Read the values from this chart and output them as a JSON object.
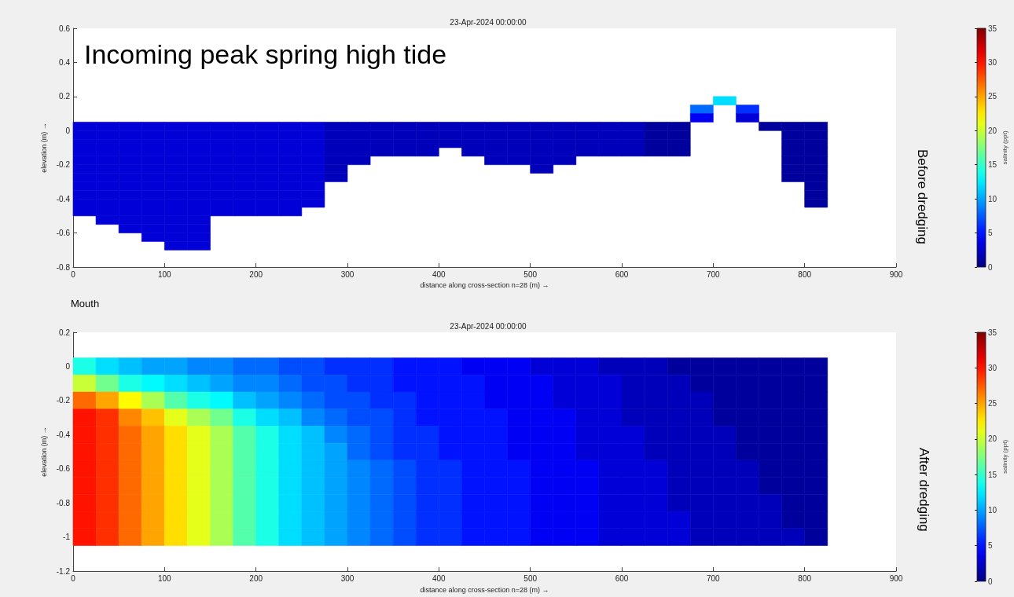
{
  "chart_data": [
    {
      "type": "heatmap",
      "title": "23-Apr-2024 00:00:00",
      "xlabel": "distance along cross-section n=28 (m) →",
      "ylabel": "elevation (m) →",
      "clabel": "salinity (ppt)",
      "annotations": [
        "Incoming peak spring high tide",
        "Before dredging"
      ],
      "x": [
        12.5,
        37.5,
        62.5,
        87.5,
        112.5,
        137.5,
        162.5,
        187.5,
        212.5,
        237.5,
        262.5,
        287.5,
        312.5,
        337.5,
        362.5,
        387.5,
        412.5,
        437.5,
        462.5,
        487.5,
        512.5,
        537.5,
        562.5,
        587.5,
        612.5,
        637.5,
        662.5,
        687.5,
        712.5,
        737.5,
        762.5,
        787.5,
        812.5
      ],
      "y": [
        0.175,
        0.125,
        0.075,
        0.025,
        -0.025,
        -0.075,
        -0.125,
        -0.175,
        -0.225,
        -0.275,
        -0.325,
        -0.375,
        -0.425,
        -0.475,
        -0.525,
        -0.575,
        -0.625,
        -0.675
      ],
      "cells": [
        [
          null,
          null,
          null,
          null,
          null,
          null,
          null,
          null,
          null,
          null,
          null,
          null,
          null,
          null,
          null,
          null,
          null,
          null,
          null,
          null,
          null,
          null,
          null,
          null,
          null,
          null,
          null,
          null,
          12,
          null,
          null,
          null,
          null
        ],
        [
          null,
          null,
          null,
          null,
          null,
          null,
          null,
          null,
          null,
          null,
          null,
          null,
          null,
          null,
          null,
          null,
          null,
          null,
          null,
          null,
          null,
          null,
          null,
          null,
          null,
          null,
          null,
          8,
          null,
          6,
          null,
          null,
          null
        ],
        [
          null,
          null,
          null,
          null,
          null,
          null,
          null,
          null,
          null,
          null,
          null,
          null,
          null,
          null,
          null,
          null,
          null,
          null,
          null,
          null,
          null,
          null,
          null,
          null,
          null,
          null,
          null,
          4,
          null,
          3,
          null,
          null,
          null
        ],
        [
          3,
          3,
          3,
          3,
          3,
          3,
          3,
          3,
          3,
          3,
          3,
          2,
          2,
          2,
          2,
          2,
          2,
          2,
          2,
          2,
          2,
          2,
          2,
          2,
          2,
          1,
          1,
          null,
          null,
          null,
          1,
          1,
          1
        ],
        [
          3,
          3,
          3,
          3,
          3,
          3,
          3,
          3,
          3,
          3,
          3,
          2,
          2,
          2,
          2,
          2,
          2,
          2,
          2,
          2,
          2,
          2,
          2,
          2,
          2,
          1,
          1,
          null,
          null,
          null,
          null,
          1,
          1
        ],
        [
          3,
          3,
          3,
          3,
          3,
          3,
          3,
          3,
          3,
          3,
          3,
          2,
          2,
          2,
          2,
          2,
          2,
          2,
          2,
          2,
          2,
          2,
          2,
          2,
          2,
          1,
          1,
          null,
          null,
          null,
          null,
          1,
          1
        ],
        [
          3,
          3,
          3,
          3,
          3,
          3,
          3,
          3,
          3,
          3,
          3,
          2,
          2,
          2,
          2,
          2,
          null,
          2,
          2,
          2,
          2,
          2,
          2,
          2,
          2,
          1,
          1,
          null,
          null,
          null,
          null,
          1,
          1
        ],
        [
          3,
          3,
          3,
          3,
          3,
          3,
          3,
          3,
          3,
          3,
          3,
          2,
          2,
          null,
          null,
          null,
          null,
          null,
          2,
          2,
          2,
          2,
          null,
          null,
          null,
          null,
          null,
          null,
          null,
          null,
          null,
          1,
          1
        ],
        [
          3,
          3,
          3,
          3,
          3,
          3,
          3,
          3,
          3,
          3,
          3,
          2,
          null,
          null,
          null,
          null,
          null,
          null,
          null,
          null,
          2,
          null,
          null,
          null,
          null,
          null,
          null,
          null,
          null,
          null,
          null,
          1,
          1
        ],
        [
          3,
          3,
          3,
          3,
          3,
          3,
          3,
          3,
          3,
          3,
          3,
          2,
          null,
          null,
          null,
          null,
          null,
          null,
          null,
          null,
          null,
          null,
          null,
          null,
          null,
          null,
          null,
          null,
          null,
          null,
          null,
          1,
          1
        ],
        [
          3,
          3,
          3,
          3,
          3,
          3,
          3,
          3,
          3,
          3,
          3,
          null,
          null,
          null,
          null,
          null,
          null,
          null,
          null,
          null,
          null,
          null,
          null,
          null,
          null,
          null,
          null,
          null,
          null,
          null,
          null,
          null,
          1
        ],
        [
          3,
          3,
          3,
          3,
          3,
          3,
          3,
          3,
          3,
          3,
          3,
          null,
          null,
          null,
          null,
          null,
          null,
          null,
          null,
          null,
          null,
          null,
          null,
          null,
          null,
          null,
          null,
          null,
          null,
          null,
          null,
          null,
          1
        ],
        [
          3,
          3,
          3,
          3,
          3,
          3,
          3,
          3,
          3,
          3,
          3,
          null,
          null,
          null,
          null,
          null,
          null,
          null,
          null,
          null,
          null,
          null,
          null,
          null,
          null,
          null,
          null,
          null,
          null,
          null,
          null,
          null,
          1
        ],
        [
          3,
          3,
          3,
          3,
          3,
          3,
          3,
          3,
          3,
          3,
          null,
          null,
          null,
          null,
          null,
          null,
          null,
          null,
          null,
          null,
          null,
          null,
          null,
          null,
          null,
          null,
          null,
          null,
          null,
          null,
          null,
          null,
          null
        ],
        [
          null,
          3,
          3,
          3,
          3,
          3,
          null,
          null,
          null,
          null,
          null,
          null,
          null,
          null,
          null,
          null,
          null,
          null,
          null,
          null,
          null,
          null,
          null,
          null,
          null,
          null,
          null,
          null,
          null,
          null,
          null,
          null,
          null
        ],
        [
          null,
          null,
          3,
          3,
          3,
          3,
          null,
          null,
          null,
          null,
          null,
          null,
          null,
          null,
          null,
          null,
          null,
          null,
          null,
          null,
          null,
          null,
          null,
          null,
          null,
          null,
          null,
          null,
          null,
          null,
          null,
          null,
          null
        ],
        [
          null,
          null,
          null,
          3,
          3,
          3,
          null,
          null,
          null,
          null,
          null,
          null,
          null,
          null,
          null,
          null,
          null,
          null,
          null,
          null,
          null,
          null,
          null,
          null,
          null,
          null,
          null,
          null,
          null,
          null,
          null,
          null,
          null
        ],
        [
          null,
          null,
          null,
          null,
          3,
          3,
          null,
          null,
          null,
          null,
          null,
          null,
          null,
          null,
          null,
          null,
          null,
          null,
          null,
          null,
          null,
          null,
          null,
          null,
          null,
          null,
          null,
          null,
          null,
          null,
          null,
          null,
          null
        ]
      ],
      "xlim": [
        0,
        900
      ],
      "xticks": [
        0,
        100,
        200,
        300,
        400,
        500,
        600,
        700,
        800,
        900
      ],
      "ylim": [
        -0.8,
        0.6
      ],
      "yticks": [
        -0.8,
        -0.6,
        -0.4,
        -0.2,
        0,
        0.2,
        0.4,
        0.6
      ],
      "clim": [
        0,
        35
      ],
      "cticks": [
        0,
        5,
        10,
        15,
        20,
        25,
        30,
        35
      ]
    },
    {
      "type": "heatmap",
      "title": "23-Apr-2024 00:00:00",
      "xlabel": "distance along cross-section n=28 (m) →",
      "ylabel": "elevation (m) →",
      "clabel": "salinity (ppt)",
      "annotations": [
        "Mouth",
        "After dredging"
      ],
      "x": [
        12.5,
        37.5,
        62.5,
        87.5,
        112.5,
        137.5,
        162.5,
        187.5,
        212.5,
        237.5,
        262.5,
        287.5,
        312.5,
        337.5,
        362.5,
        387.5,
        412.5,
        437.5,
        462.5,
        487.5,
        512.5,
        537.5,
        562.5,
        587.5,
        612.5,
        637.5,
        662.5,
        687.5,
        712.5,
        737.5,
        762.5,
        787.5,
        812.5
      ],
      "y": [
        0,
        -0.1,
        -0.2,
        -0.3,
        -0.4,
        -0.5,
        -0.6,
        -0.7,
        -0.8,
        -0.9,
        -1
      ],
      "cells": [
        [
          14,
          12,
          11,
          10,
          10,
          9,
          9,
          8,
          8,
          7,
          7,
          6,
          6,
          6,
          5,
          5,
          5,
          4,
          4,
          4,
          3,
          3,
          3,
          2,
          2,
          2,
          1,
          1,
          1,
          1,
          1,
          1,
          1
        ],
        [
          20,
          17,
          14,
          13,
          12,
          11,
          10,
          9,
          9,
          8,
          7,
          7,
          6,
          6,
          5,
          5,
          5,
          5,
          4,
          4,
          4,
          3,
          3,
          3,
          2,
          2,
          2,
          1,
          1,
          1,
          1,
          1,
          1
        ],
        [
          27,
          25,
          22,
          19,
          16,
          14,
          13,
          11,
          10,
          9,
          8,
          7,
          7,
          6,
          6,
          5,
          5,
          5,
          4,
          4,
          4,
          3,
          3,
          3,
          2,
          2,
          2,
          2,
          1,
          1,
          1,
          1,
          1
        ],
        [
          30,
          29,
          26,
          24,
          21,
          19,
          17,
          14,
          12,
          11,
          9,
          8,
          7,
          7,
          6,
          5,
          5,
          5,
          5,
          4,
          4,
          4,
          3,
          3,
          2,
          2,
          2,
          2,
          1,
          1,
          1,
          1,
          1
        ],
        [
          30,
          29,
          27,
          25,
          23,
          21,
          19,
          16,
          14,
          12,
          11,
          9,
          8,
          7,
          6,
          6,
          5,
          5,
          5,
          4,
          4,
          4,
          3,
          3,
          3,
          2,
          2,
          2,
          2,
          1,
          1,
          1,
          1
        ],
        [
          30,
          29,
          27,
          25,
          23,
          21,
          19,
          16,
          14,
          12,
          11,
          10,
          8,
          7,
          6,
          6,
          5,
          5,
          5,
          4,
          4,
          4,
          3,
          3,
          3,
          2,
          2,
          2,
          2,
          1,
          1,
          1,
          1
        ],
        [
          30,
          29,
          27,
          25,
          23,
          21,
          19,
          16,
          14,
          12,
          11,
          10,
          9,
          8,
          7,
          6,
          6,
          5,
          5,
          5,
          4,
          4,
          4,
          3,
          3,
          3,
          2,
          2,
          2,
          2,
          1,
          1,
          1
        ],
        [
          30,
          29,
          27,
          25,
          23,
          21,
          19,
          16,
          14,
          12,
          11,
          10,
          9,
          8,
          7,
          6,
          6,
          5,
          5,
          5,
          4,
          4,
          4,
          3,
          3,
          3,
          2,
          2,
          2,
          2,
          1,
          1,
          1
        ],
        [
          30,
          29,
          27,
          25,
          23,
          21,
          19,
          16,
          14,
          12,
          11,
          10,
          9,
          8,
          7,
          6,
          6,
          5,
          5,
          5,
          4,
          4,
          4,
          3,
          3,
          3,
          2,
          2,
          2,
          2,
          2,
          1,
          1
        ],
        [
          30,
          29,
          27,
          25,
          23,
          21,
          19,
          16,
          14,
          12,
          11,
          10,
          9,
          8,
          7,
          6,
          6,
          5,
          5,
          5,
          4,
          4,
          4,
          3,
          3,
          3,
          3,
          2,
          2,
          2,
          2,
          1,
          1
        ],
        [
          30,
          29,
          27,
          25,
          23,
          21,
          19,
          16,
          14,
          12,
          11,
          10,
          9,
          8,
          7,
          6,
          6,
          5,
          5,
          5,
          4,
          4,
          4,
          3,
          3,
          3,
          3,
          2,
          2,
          2,
          2,
          2,
          1
        ]
      ],
      "xlim": [
        0,
        900
      ],
      "xticks": [
        0,
        100,
        200,
        300,
        400,
        500,
        600,
        700,
        800,
        900
      ],
      "ylim": [
        -1.2,
        0.2
      ],
      "yticks": [
        -1.2,
        -1,
        -0.8,
        -0.6,
        -0.4,
        -0.2,
        0,
        0.2
      ],
      "clim": [
        0,
        35
      ],
      "cticks": [
        0,
        5,
        10,
        15,
        20,
        25,
        30,
        35
      ]
    }
  ]
}
